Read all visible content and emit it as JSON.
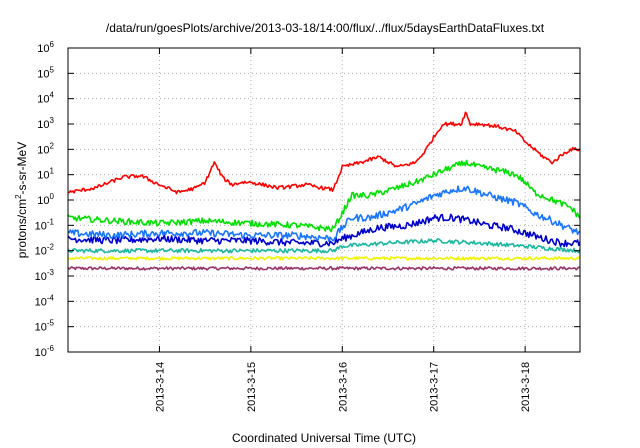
{
  "chart_data": {
    "type": "line",
    "title": "/data/run/goesPlots/archive/2013-03-18/14:00/flux/../flux/5daysEarthDataFluxes.txt",
    "xlabel": "Coordinated Universal Time (UTC)",
    "ylabel_parts": [
      "protons/cm",
      "2",
      "-s-sr-MeV"
    ],
    "y_scale": "log",
    "ylim": [
      1e-06,
      1000000.0
    ],
    "xlim": [
      0,
      5.6
    ],
    "grid": true,
    "x_ticks": [
      {
        "label": "2013-3-14",
        "x": 1.0
      },
      {
        "label": "2013-3-15",
        "x": 2.0
      },
      {
        "label": "2013-3-16",
        "x": 3.0
      },
      {
        "label": "2013-3-17",
        "x": 4.0
      },
      {
        "label": "2013-3-18",
        "x": 5.0
      }
    ],
    "y_ticks": [
      {
        "base": "10",
        "exp": "-6",
        "value": 1e-06
      },
      {
        "base": "10",
        "exp": "-5",
        "value": 1e-05
      },
      {
        "base": "10",
        "exp": "-4",
        "value": 0.0001
      },
      {
        "base": "10",
        "exp": "-3",
        "value": 0.001
      },
      {
        "base": "10",
        "exp": "-2",
        "value": 0.01
      },
      {
        "base": "10",
        "exp": "-1",
        "value": 0.1
      },
      {
        "base": "10",
        "exp": "0",
        "value": 1
      },
      {
        "base": "10",
        "exp": "1",
        "value": 10
      },
      {
        "base": "10",
        "exp": "2",
        "value": 100
      },
      {
        "base": "10",
        "exp": "3",
        "value": 1000
      },
      {
        "base": "10",
        "exp": "4",
        "value": 10000
      },
      {
        "base": "10",
        "exp": "5",
        "value": 100000
      },
      {
        "base": "10",
        "exp": "6",
        "value": 1000000
      }
    ],
    "series": [
      {
        "color": "#ff0000",
        "noise": 0.07,
        "x": [
          0,
          0.3,
          0.6,
          0.8,
          1.0,
          1.2,
          1.4,
          1.5,
          1.6,
          1.7,
          1.8,
          1.9,
          2.0,
          2.3,
          2.6,
          2.9,
          3.0,
          3.2,
          3.4,
          3.6,
          3.8,
          3.9,
          4.0,
          4.1,
          4.3,
          4.35,
          4.4,
          4.5,
          4.7,
          4.9,
          5.0,
          5.1,
          5.2,
          5.3,
          5.4,
          5.5,
          5.6
        ],
        "y": [
          2,
          3,
          8,
          9,
          4,
          2,
          3,
          5,
          30,
          7,
          4,
          5,
          5,
          3,
          4,
          2.5,
          20,
          30,
          50,
          20,
          30,
          80,
          300,
          1000,
          1000,
          3000,
          1000,
          1000,
          800,
          500,
          200,
          100,
          50,
          30,
          60,
          100,
          100
        ]
      },
      {
        "color": "#00e000",
        "noise": 0.12,
        "x": [
          0,
          0.5,
          1.0,
          1.5,
          2.0,
          2.5,
          2.9,
          3.0,
          3.1,
          3.3,
          3.6,
          3.8,
          4.0,
          4.2,
          4.35,
          4.5,
          4.7,
          4.9,
          5.0,
          5.1,
          5.3,
          5.5,
          5.6
        ],
        "y": [
          0.2,
          0.15,
          0.12,
          0.15,
          0.12,
          0.1,
          0.07,
          0.3,
          1.5,
          1.5,
          3,
          5,
          10,
          20,
          30,
          20,
          15,
          10,
          5,
          2,
          1,
          0.5,
          0.2
        ]
      },
      {
        "color": "#1a75ff",
        "noise": 0.14,
        "x": [
          0,
          0.5,
          1.0,
          1.5,
          2.0,
          2.5,
          2.9,
          3.0,
          3.1,
          3.3,
          3.6,
          3.8,
          4.0,
          4.2,
          4.35,
          4.5,
          4.7,
          4.9,
          5.0,
          5.1,
          5.3,
          5.5,
          5.6
        ],
        "y": [
          0.05,
          0.04,
          0.05,
          0.05,
          0.04,
          0.04,
          0.03,
          0.08,
          0.2,
          0.2,
          0.4,
          0.7,
          1.5,
          2.5,
          3,
          2,
          1.2,
          0.8,
          0.5,
          0.3,
          0.15,
          0.07,
          0.05
        ]
      },
      {
        "color": "#0000cc",
        "noise": 0.14,
        "x": [
          0,
          0.5,
          1.0,
          1.5,
          2.0,
          2.5,
          2.9,
          3.0,
          3.2,
          3.4,
          3.7,
          3.9,
          4.0,
          4.2,
          4.4,
          4.6,
          4.8,
          5.0,
          5.2,
          5.4,
          5.6
        ],
        "y": [
          0.03,
          0.025,
          0.03,
          0.025,
          0.025,
          0.02,
          0.02,
          0.03,
          0.05,
          0.08,
          0.1,
          0.15,
          0.2,
          0.2,
          0.15,
          0.1,
          0.08,
          0.05,
          0.03,
          0.02,
          0.02
        ]
      },
      {
        "color": "#1ab8a0",
        "noise": 0.08,
        "x": [
          0,
          1.0,
          2.0,
          2.9,
          3.0,
          3.5,
          4.0,
          4.5,
          5.0,
          5.3,
          5.6
        ],
        "y": [
          0.01,
          0.01,
          0.01,
          0.01,
          0.015,
          0.02,
          0.025,
          0.02,
          0.015,
          0.012,
          0.01
        ]
      },
      {
        "color": "#f2f200",
        "noise": 0.06,
        "x": [
          0,
          1.0,
          2.0,
          3.0,
          4.0,
          5.0,
          5.6
        ],
        "y": [
          0.005,
          0.005,
          0.005,
          0.005,
          0.005,
          0.005,
          0.005
        ]
      },
      {
        "color": "#993366",
        "noise": 0.06,
        "x": [
          0,
          1.0,
          2.0,
          3.0,
          4.0,
          5.0,
          5.6
        ],
        "y": [
          0.002,
          0.002,
          0.002,
          0.002,
          0.002,
          0.002,
          0.002
        ]
      }
    ]
  }
}
